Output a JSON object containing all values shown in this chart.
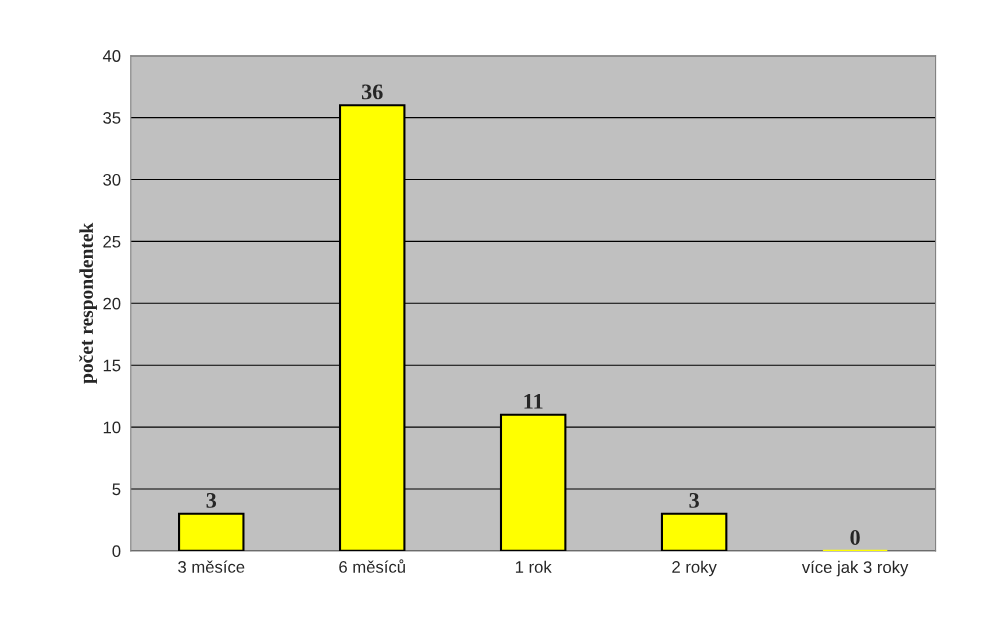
{
  "chart_data": {
    "type": "bar",
    "ylabel": "počet respondentek",
    "categories": [
      "3 měsíce",
      "6 měsíců",
      "1 rok",
      "2 roky",
      "více jak 3 roky"
    ],
    "values": [
      3,
      36,
      11,
      3,
      0
    ],
    "color": "#ffff00",
    "ylim": [
      0,
      40
    ],
    "yticks": [
      0,
      5,
      10,
      15,
      20,
      25,
      30,
      35,
      40
    ],
    "grid": "y",
    "data_labels": true
  }
}
